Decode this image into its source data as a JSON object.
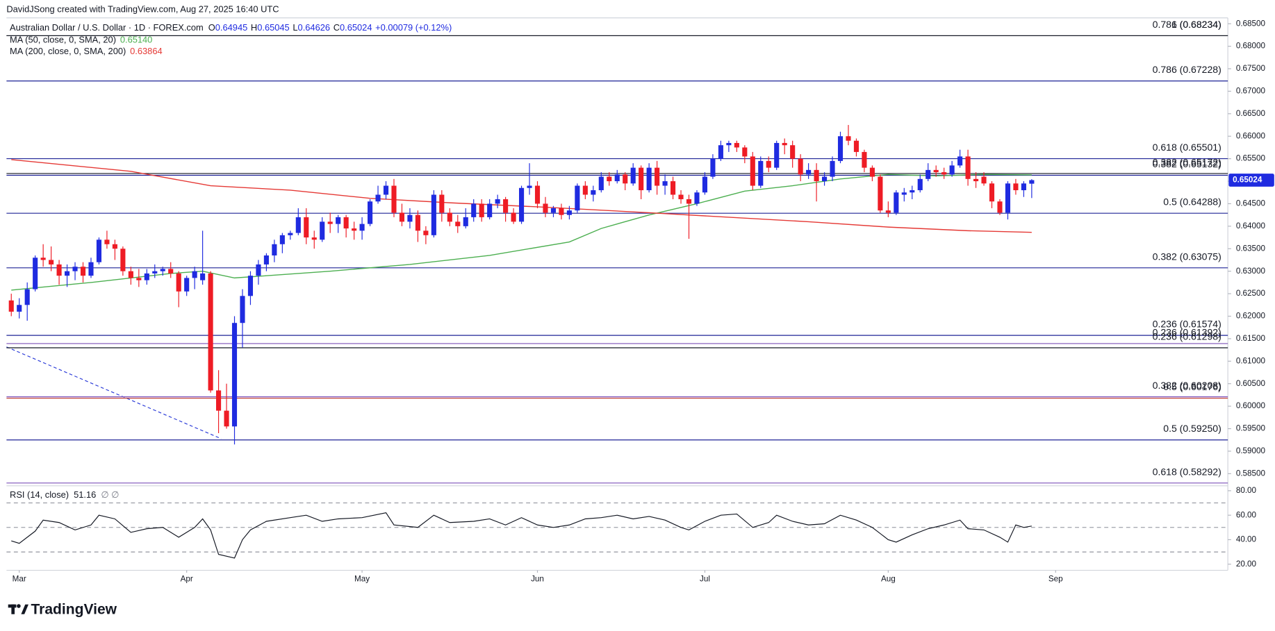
{
  "header": "DavidJSong created with TradingView.com, Aug 27, 2025 16:40 UTC",
  "brand": "TradingView",
  "chart_data": {
    "type": "candlestick",
    "symbol": "Australian Dollar / U.S. Dollar · 1D · FOREX.com",
    "ohlc_labels": [
      "O",
      "H",
      "L",
      "C"
    ],
    "change": "+0.00079 (+0.12%)",
    "up_color": "#1f2be0",
    "down_color": "#ee1c25",
    "xlim": [
      -0.6,
      152.6
    ],
    "xticks": [
      {
        "value": 1,
        "label": "Mar"
      },
      {
        "value": 22,
        "label": "Apr"
      },
      {
        "value": 44,
        "label": "May"
      },
      {
        "value": 66,
        "label": "Jun"
      },
      {
        "value": 87,
        "label": "Jul"
      },
      {
        "value": 110,
        "label": "Aug"
      },
      {
        "value": 131,
        "label": "Sep"
      }
    ],
    "ylim": [
      0.5823,
      0.6863
    ],
    "yticks": [
      {
        "value": 0.585,
        "label": "0.58500"
      },
      {
        "value": 0.59,
        "label": "0.59000"
      },
      {
        "value": 0.595,
        "label": "0.59500"
      },
      {
        "value": 0.6,
        "label": "0.60000"
      },
      {
        "value": 0.605,
        "label": "0.60500"
      },
      {
        "value": 0.61,
        "label": "0.61000"
      },
      {
        "value": 0.615,
        "label": "0.61500"
      },
      {
        "value": 0.62,
        "label": "0.62000"
      },
      {
        "value": 0.625,
        "label": "0.62500"
      },
      {
        "value": 0.63,
        "label": "0.63000"
      },
      {
        "value": 0.635,
        "label": "0.63500"
      },
      {
        "value": 0.64,
        "label": "0.64000"
      },
      {
        "value": 0.645,
        "label": "0.64500"
      },
      {
        "value": 0.65,
        "label": "0.65000"
      },
      {
        "value": 0.655,
        "label": "0.65500"
      },
      {
        "value": 0.66,
        "label": "0.66000"
      },
      {
        "value": 0.665,
        "label": "0.66500"
      },
      {
        "value": 0.67,
        "label": "0.67000"
      },
      {
        "value": 0.675,
        "label": "0.67500"
      },
      {
        "value": 0.68,
        "label": "0.68000"
      },
      {
        "value": 0.685,
        "label": "0.68500"
      }
    ],
    "open": [
      0.6235,
      0.621,
      0.6225,
      0.626,
      0.633,
      0.6325,
      0.6315,
      0.629,
      0.63,
      0.631,
      0.629,
      0.632,
      0.637,
      0.636,
      0.635,
      0.63,
      0.6285,
      0.628,
      0.6295,
      0.63,
      0.6305,
      0.6295,
      0.6255,
      0.6285,
      0.628,
      0.6295,
      0.6035,
      0.599,
      0.5955,
      0.6185,
      0.6245,
      0.629,
      0.6315,
      0.6335,
      0.636,
      0.638,
      0.6385,
      0.642,
      0.6375,
      0.637,
      0.641,
      0.6405,
      0.642,
      0.6395,
      0.639,
      0.6405,
      0.6455,
      0.647,
      0.649,
      0.643,
      0.641,
      0.6425,
      0.639,
      0.638,
      0.647,
      0.643,
      0.641,
      0.64,
      0.642,
      0.645,
      0.642,
      0.645,
      0.646,
      0.643,
      0.641,
      0.6485,
      0.649,
      0.645,
      0.643,
      0.644,
      0.6425,
      0.6435,
      0.649,
      0.647,
      0.648,
      0.651,
      0.65,
      0.6515,
      0.6495,
      0.653,
      0.648,
      0.653,
      0.649,
      0.65,
      0.647,
      0.646,
      0.645,
      0.6475,
      0.651,
      0.655,
      0.658,
      0.6585,
      0.6575,
      0.6555,
      0.649,
      0.6545,
      0.653,
      0.6585,
      0.658,
      0.655,
      0.6515,
      0.6525,
      0.65,
      0.651,
      0.6545,
      0.66,
      0.659,
      0.6565,
      0.653,
      0.651,
      0.6435,
      0.643,
      0.647,
      0.6475,
      0.648,
      0.6505,
      0.6525,
      0.652,
      0.6515,
      0.6535,
      0.6555,
      0.6505,
      0.651,
      0.6495,
      0.6455,
      0.643,
      0.6495,
      0.648,
      0.64945
    ],
    "high": [
      0.625,
      0.624,
      0.6275,
      0.6335,
      0.636,
      0.6355,
      0.6325,
      0.6315,
      0.632,
      0.632,
      0.633,
      0.6375,
      0.639,
      0.637,
      0.6355,
      0.631,
      0.6305,
      0.6305,
      0.6315,
      0.631,
      0.632,
      0.63,
      0.629,
      0.631,
      0.639,
      0.63,
      0.608,
      0.605,
      0.62,
      0.626,
      0.63,
      0.6325,
      0.634,
      0.637,
      0.6385,
      0.639,
      0.644,
      0.644,
      0.639,
      0.642,
      0.643,
      0.6425,
      0.6425,
      0.641,
      0.642,
      0.646,
      0.649,
      0.65,
      0.6505,
      0.645,
      0.644,
      0.6435,
      0.64,
      0.648,
      0.648,
      0.644,
      0.6425,
      0.644,
      0.646,
      0.646,
      0.646,
      0.647,
      0.6465,
      0.644,
      0.649,
      0.654,
      0.65,
      0.6465,
      0.6445,
      0.645,
      0.6445,
      0.6495,
      0.65,
      0.649,
      0.652,
      0.652,
      0.6525,
      0.652,
      0.654,
      0.6535,
      0.654,
      0.6545,
      0.6515,
      0.651,
      0.648,
      0.647,
      0.648,
      0.652,
      0.656,
      0.659,
      0.659,
      0.659,
      0.658,
      0.6565,
      0.6555,
      0.6555,
      0.659,
      0.6595,
      0.659,
      0.656,
      0.654,
      0.654,
      0.652,
      0.6555,
      0.661,
      0.6625,
      0.6595,
      0.657,
      0.6535,
      0.6515,
      0.6455,
      0.648,
      0.6485,
      0.649,
      0.6515,
      0.654,
      0.6535,
      0.653,
      0.6545,
      0.657,
      0.657,
      0.652,
      0.652,
      0.65,
      0.646,
      0.65,
      0.6505,
      0.65,
      0.65045
    ],
    "low": [
      0.62,
      0.6195,
      0.619,
      0.6255,
      0.631,
      0.63,
      0.627,
      0.6265,
      0.628,
      0.6275,
      0.6285,
      0.6315,
      0.635,
      0.6325,
      0.629,
      0.627,
      0.6265,
      0.627,
      0.6285,
      0.629,
      0.6285,
      0.622,
      0.6245,
      0.626,
      0.627,
      0.603,
      0.594,
      0.595,
      0.5915,
      0.613,
      0.6225,
      0.627,
      0.63,
      0.632,
      0.634,
      0.637,
      0.638,
      0.636,
      0.635,
      0.6365,
      0.6385,
      0.6385,
      0.6375,
      0.637,
      0.637,
      0.64,
      0.645,
      0.646,
      0.642,
      0.64,
      0.6395,
      0.6365,
      0.636,
      0.6375,
      0.641,
      0.64,
      0.6385,
      0.6395,
      0.641,
      0.641,
      0.6415,
      0.644,
      0.641,
      0.6405,
      0.6405,
      0.647,
      0.644,
      0.642,
      0.642,
      0.6415,
      0.6415,
      0.643,
      0.646,
      0.6455,
      0.6475,
      0.649,
      0.6495,
      0.648,
      0.649,
      0.646,
      0.6475,
      0.647,
      0.647,
      0.646,
      0.645,
      0.6372,
      0.6445,
      0.647,
      0.6505,
      0.6545,
      0.6565,
      0.6565,
      0.654,
      0.648,
      0.6485,
      0.652,
      0.6525,
      0.656,
      0.653,
      0.65,
      0.6505,
      0.6455,
      0.649,
      0.65,
      0.654,
      0.658,
      0.6555,
      0.652,
      0.65,
      0.643,
      0.642,
      0.6425,
      0.6455,
      0.646,
      0.6475,
      0.65,
      0.651,
      0.6505,
      0.651,
      0.653,
      0.649,
      0.6485,
      0.649,
      0.644,
      0.6425,
      0.6415,
      0.647,
      0.6465,
      0.64626
    ],
    "close": [
      0.621,
      0.6225,
      0.626,
      0.633,
      0.6325,
      0.6315,
      0.629,
      0.63,
      0.631,
      0.629,
      0.632,
      0.637,
      0.636,
      0.635,
      0.63,
      0.6285,
      0.628,
      0.6295,
      0.63,
      0.6305,
      0.6295,
      0.6255,
      0.6285,
      0.63,
      0.6295,
      0.6035,
      0.599,
      0.5955,
      0.6185,
      0.6245,
      0.629,
      0.6315,
      0.6335,
      0.636,
      0.638,
      0.6385,
      0.642,
      0.6375,
      0.637,
      0.641,
      0.6405,
      0.642,
      0.6395,
      0.639,
      0.6405,
      0.6455,
      0.647,
      0.649,
      0.643,
      0.641,
      0.6425,
      0.639,
      0.638,
      0.647,
      0.643,
      0.641,
      0.64,
      0.642,
      0.645,
      0.642,
      0.645,
      0.646,
      0.643,
      0.641,
      0.6485,
      0.649,
      0.645,
      0.643,
      0.644,
      0.6425,
      0.6435,
      0.649,
      0.647,
      0.648,
      0.651,
      0.65,
      0.6515,
      0.6495,
      0.653,
      0.648,
      0.653,
      0.649,
      0.65,
      0.647,
      0.646,
      0.645,
      0.6475,
      0.651,
      0.655,
      0.658,
      0.6585,
      0.6575,
      0.6555,
      0.649,
      0.6545,
      0.653,
      0.6585,
      0.658,
      0.655,
      0.6515,
      0.6525,
      0.65,
      0.651,
      0.6545,
      0.66,
      0.659,
      0.6565,
      0.653,
      0.651,
      0.6435,
      0.643,
      0.6475,
      0.6475,
      0.648,
      0.6505,
      0.6525,
      0.652,
      0.6515,
      0.6535,
      0.6555,
      0.6505,
      0.65,
      0.6495,
      0.6455,
      0.643,
      0.6495,
      0.648,
      0.6495,
      0.65024
    ],
    "ma": [
      {
        "name": "MA (50, close, 0, SMA, 20)",
        "color": "#4caf50",
        "value_label": "0.65140",
        "x": [
          0,
          10,
          20,
          24,
          28,
          32,
          40,
          50,
          60,
          70,
          74,
          80,
          86,
          92,
          98,
          104,
          110,
          116,
          122,
          128
        ],
        "values": [
          0.6258,
          0.6275,
          0.6295,
          0.63,
          0.6285,
          0.629,
          0.63,
          0.6315,
          0.6335,
          0.6365,
          0.6395,
          0.6425,
          0.645,
          0.6478,
          0.649,
          0.6505,
          0.6515,
          0.6512,
          0.6515,
          0.6514
        ]
      },
      {
        "name": "MA (200, close, 0, SMA, 200)",
        "color": "#e53935",
        "value_label": "0.63864",
        "x": [
          0,
          15,
          25,
          35,
          45,
          55,
          66,
          80,
          90,
          100,
          110,
          120,
          128
        ],
        "values": [
          0.6548,
          0.6522,
          0.649,
          0.648,
          0.6462,
          0.6452,
          0.6443,
          0.643,
          0.642,
          0.641,
          0.6398,
          0.639,
          0.63864
        ]
      }
    ],
    "fib_levels": [
      {
        "label": "1 (0.68234)",
        "value": 0.68234,
        "color": "#131722"
      },
      {
        "label": "0.786 (0.68234)",
        "value": 0.68234,
        "color": "#131722"
      },
      {
        "label": "0.786 (0.67228)",
        "value": 0.67228,
        "color": "#1e2396"
      },
      {
        "label": "0.618 (0.65501)",
        "value": 0.65501,
        "color": "#1e2396"
      },
      {
        "label": "0.382 (0.65172)",
        "value": 0.65172,
        "color": "#131722"
      },
      {
        "label": "0.382 (0.65132)",
        "value": 0.65132,
        "color": "#1e2396"
      },
      {
        "label": "0.5 (0.64288)",
        "value": 0.64288,
        "color": "#1e2396"
      },
      {
        "label": "0.382 (0.63075)",
        "value": 0.63075,
        "color": "#1e2396"
      },
      {
        "label": "0.236 (0.61574)",
        "value": 0.61574,
        "color": "#1e2396"
      },
      {
        "label": "0.236 (0.61392)",
        "value": 0.61392,
        "color": "#7b4fb8"
      },
      {
        "label": "0.236 (0.61298)",
        "value": 0.61298,
        "color": "#131722"
      },
      {
        "label": "0.382 (0.60208)",
        "value": 0.60208,
        "color": "#7b4fb8"
      },
      {
        "label": "0.5 (0.60176)",
        "value": 0.60176,
        "color": "#c0392b"
      },
      {
        "label": "0.5 (0.59250)",
        "value": 0.5925,
        "color": "#1e2396"
      },
      {
        "label": "0.618 (0.58292)",
        "value": 0.58292,
        "color": "#7b4fb8"
      }
    ],
    "rsi": {
      "name": "RSI (14, close)",
      "extra": "∅ ∅",
      "color": "#131722",
      "ylim": [
        15,
        84
      ],
      "yticks": [
        {
          "value": 20,
          "label": "20.00"
        },
        {
          "value": 40,
          "label": "40.00"
        },
        {
          "value": 60,
          "label": "60.00"
        },
        {
          "value": 80,
          "label": "80.00"
        }
      ],
      "bands": [
        70,
        50,
        30
      ],
      "x": [
        0,
        1,
        3,
        4,
        6,
        8,
        10,
        11,
        13,
        15,
        17,
        19,
        21,
        23,
        24,
        25,
        26,
        28,
        29,
        30,
        32,
        35,
        37,
        39,
        41,
        44,
        47,
        48,
        51,
        53,
        55,
        58,
        60,
        62,
        64,
        66,
        68,
        70,
        72,
        74,
        76,
        78,
        80,
        82,
        84,
        85,
        87,
        89,
        91,
        93,
        95,
        96,
        98,
        100,
        102,
        104,
        106,
        108,
        110,
        111,
        113,
        115,
        117,
        119,
        120,
        122,
        124,
        125,
        126,
        127,
        128
      ],
      "values": [
        39,
        37,
        47,
        56,
        54,
        48,
        52,
        60,
        57,
        46,
        49,
        50,
        42,
        50,
        57,
        48,
        28,
        25,
        40,
        48,
        55,
        58,
        60,
        55,
        57,
        58,
        62,
        52,
        50,
        60,
        54,
        55,
        57,
        52,
        58,
        52,
        50,
        52,
        57,
        58,
        60,
        57,
        59,
        56,
        50,
        48,
        55,
        60,
        61,
        50,
        54,
        60,
        55,
        52,
        53,
        60,
        56,
        50,
        40,
        38,
        44,
        49,
        52,
        56,
        49,
        48,
        42,
        38,
        52,
        50,
        51.16
      ]
    }
  }
}
